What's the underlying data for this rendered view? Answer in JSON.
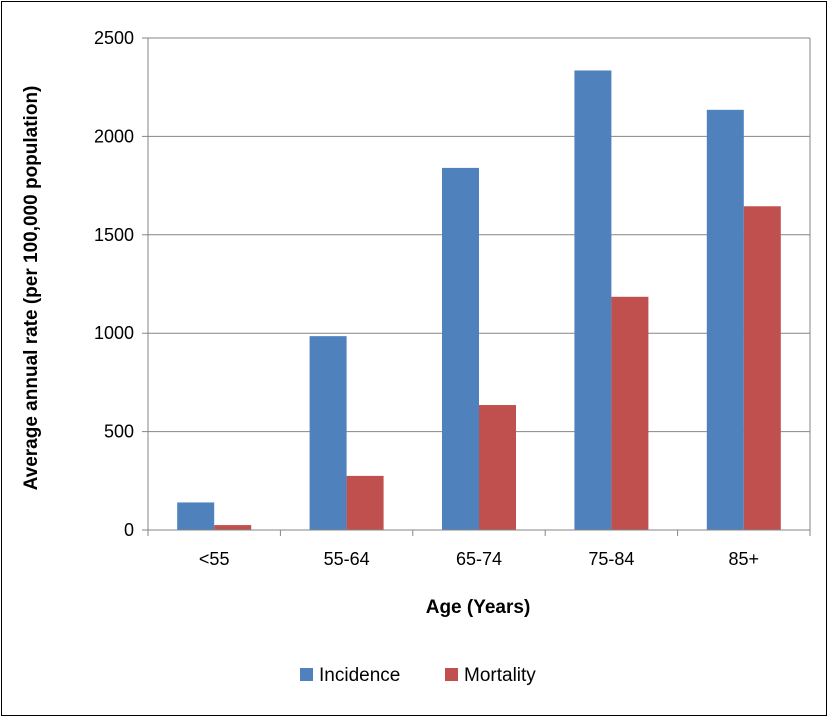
{
  "chart_data": {
    "type": "bar",
    "title": "",
    "xlabel": "Age (Years)",
    "ylabel": "Average annual rate (per 100,000 population)",
    "categories": [
      "<55",
      "55-64",
      "65-74",
      "75-84",
      "85+"
    ],
    "series": [
      {
        "name": "Incidence",
        "color": "#4F81BD",
        "values": [
          140,
          985,
          1840,
          2335,
          2135
        ]
      },
      {
        "name": "Mortality",
        "color": "#C0504D",
        "values": [
          25,
          275,
          635,
          1185,
          1645
        ]
      }
    ],
    "ylim": [
      0,
      2500
    ],
    "yticks": [
      0,
      500,
      1000,
      1500,
      2000,
      2500
    ],
    "grid": true,
    "legend_position": "bottom"
  }
}
